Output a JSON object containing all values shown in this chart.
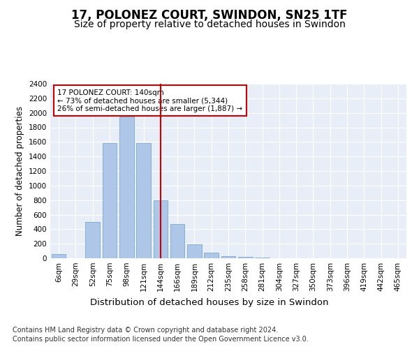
{
  "title": "17, POLONEZ COURT, SWINDON, SN25 1TF",
  "subtitle": "Size of property relative to detached houses in Swindon",
  "xlabel": "Distribution of detached houses by size in Swindon",
  "ylabel": "Number of detached properties",
  "footer_line1": "Contains HM Land Registry data © Crown copyright and database right 2024.",
  "footer_line2": "Contains public sector information licensed under the Open Government Licence v3.0.",
  "categories": [
    "6sqm",
    "29sqm",
    "52sqm",
    "75sqm",
    "98sqm",
    "121sqm",
    "144sqm",
    "166sqm",
    "189sqm",
    "212sqm",
    "235sqm",
    "258sqm",
    "281sqm",
    "304sqm",
    "327sqm",
    "350sqm",
    "373sqm",
    "396sqm",
    "419sqm",
    "442sqm",
    "465sqm"
  ],
  "values": [
    55,
    0,
    500,
    1580,
    1950,
    1580,
    800,
    470,
    190,
    80,
    25,
    20,
    5,
    0,
    0,
    0,
    0,
    0,
    0,
    0,
    0
  ],
  "bar_color": "#aec6e8",
  "bar_edge_color": "#6a9fcb",
  "vline_x_index": 6,
  "vline_color": "#cc0000",
  "annotation_text": "17 POLONEZ COURT: 140sqm\n← 73% of detached houses are smaller (5,344)\n26% of semi-detached houses are larger (1,887) →",
  "annotation_box_color": "#cc0000",
  "ylim": [
    0,
    2400
  ],
  "yticks": [
    0,
    200,
    400,
    600,
    800,
    1000,
    1200,
    1400,
    1600,
    1800,
    2000,
    2200,
    2400
  ],
  "background_color": "#e8eef7",
  "plot_bg_color": "#e8eef7",
  "title_fontsize": 12,
  "subtitle_fontsize": 10,
  "xlabel_fontsize": 9.5,
  "ylabel_fontsize": 8.5,
  "tick_fontsize": 7.5,
  "annotation_fontsize": 7.5,
  "footer_fontsize": 7
}
